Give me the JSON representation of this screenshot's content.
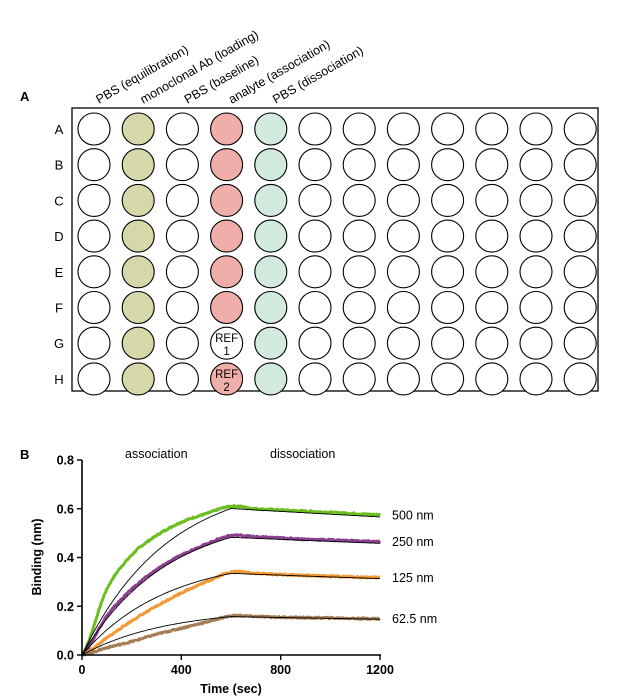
{
  "panel_a": {
    "letter": "A",
    "column_labels": [
      "PBS (equilibration)",
      "monoclonal Ab (loading)",
      "PBS (baseline)",
      "analyte (association)",
      "PBS (dissociation)"
    ],
    "row_labels": [
      "A",
      "B",
      "C",
      "D",
      "E",
      "F",
      "G",
      "H"
    ],
    "num_columns": 12,
    "colors": {
      "loading": "#d6d8aa",
      "analyte": "#efaeaa",
      "dissociation": "#d3eadf",
      "empty": "#ffffff"
    },
    "column_fill": [
      "empty",
      "loading",
      "empty",
      "analyte",
      "dissociation",
      "empty",
      "empty",
      "empty",
      "empty",
      "empty",
      "empty",
      "empty"
    ],
    "special_wells": [
      {
        "row": 6,
        "col": 3,
        "fill": "empty",
        "label_top": "REF",
        "label_bottom": "1"
      },
      {
        "row": 7,
        "col": 3,
        "fill": "analyte",
        "label_top": "REF",
        "label_bottom": "2"
      }
    ]
  },
  "panel_b": {
    "letter": "B",
    "association_label": "association",
    "dissociation_label": "dissociation"
  },
  "chart_data": {
    "type": "line",
    "xlabel": "Time (sec)",
    "ylabel": "Binding (nm)",
    "xlim": [
      0,
      1200
    ],
    "ylim": [
      0,
      0.8
    ],
    "x_ticks": [
      "0",
      "400",
      "800",
      "1200"
    ],
    "y_ticks": [
      "0.0",
      "0.2",
      "0.4",
      "0.6",
      "0.8"
    ],
    "association_end": 600,
    "series": [
      {
        "name": "500 nm",
        "color": "#6cbe1f",
        "x": [
          0,
          100,
          200,
          300,
          400,
          500,
          600,
          700,
          800,
          900,
          1000,
          1100,
          1200
        ],
        "values": [
          0,
          0.27,
          0.41,
          0.49,
          0.545,
          0.58,
          0.61,
          0.6,
          0.595,
          0.59,
          0.585,
          0.58,
          0.575
        ]
      },
      {
        "name": "250 nm",
        "color": "#8a3f8f",
        "x": [
          0,
          100,
          200,
          300,
          400,
          500,
          600,
          700,
          800,
          900,
          1000,
          1100,
          1200
        ],
        "values": [
          0,
          0.16,
          0.27,
          0.35,
          0.41,
          0.455,
          0.49,
          0.485,
          0.48,
          0.475,
          0.472,
          0.468,
          0.465
        ]
      },
      {
        "name": "125 nm",
        "color": "#f19a35",
        "x": [
          0,
          100,
          200,
          300,
          400,
          500,
          600,
          700,
          800,
          900,
          1000,
          1100,
          1200
        ],
        "values": [
          0,
          0.07,
          0.14,
          0.2,
          0.255,
          0.3,
          0.34,
          0.335,
          0.33,
          0.326,
          0.323,
          0.32,
          0.318
        ]
      },
      {
        "name": "62.5 nm",
        "color": "#a57e57",
        "x": [
          0,
          100,
          200,
          300,
          400,
          500,
          600,
          700,
          800,
          900,
          1000,
          1100,
          1200
        ],
        "values": [
          0,
          0.03,
          0.055,
          0.085,
          0.11,
          0.135,
          0.16,
          0.158,
          0.155,
          0.153,
          0.152,
          0.15,
          0.149
        ]
      }
    ]
  }
}
